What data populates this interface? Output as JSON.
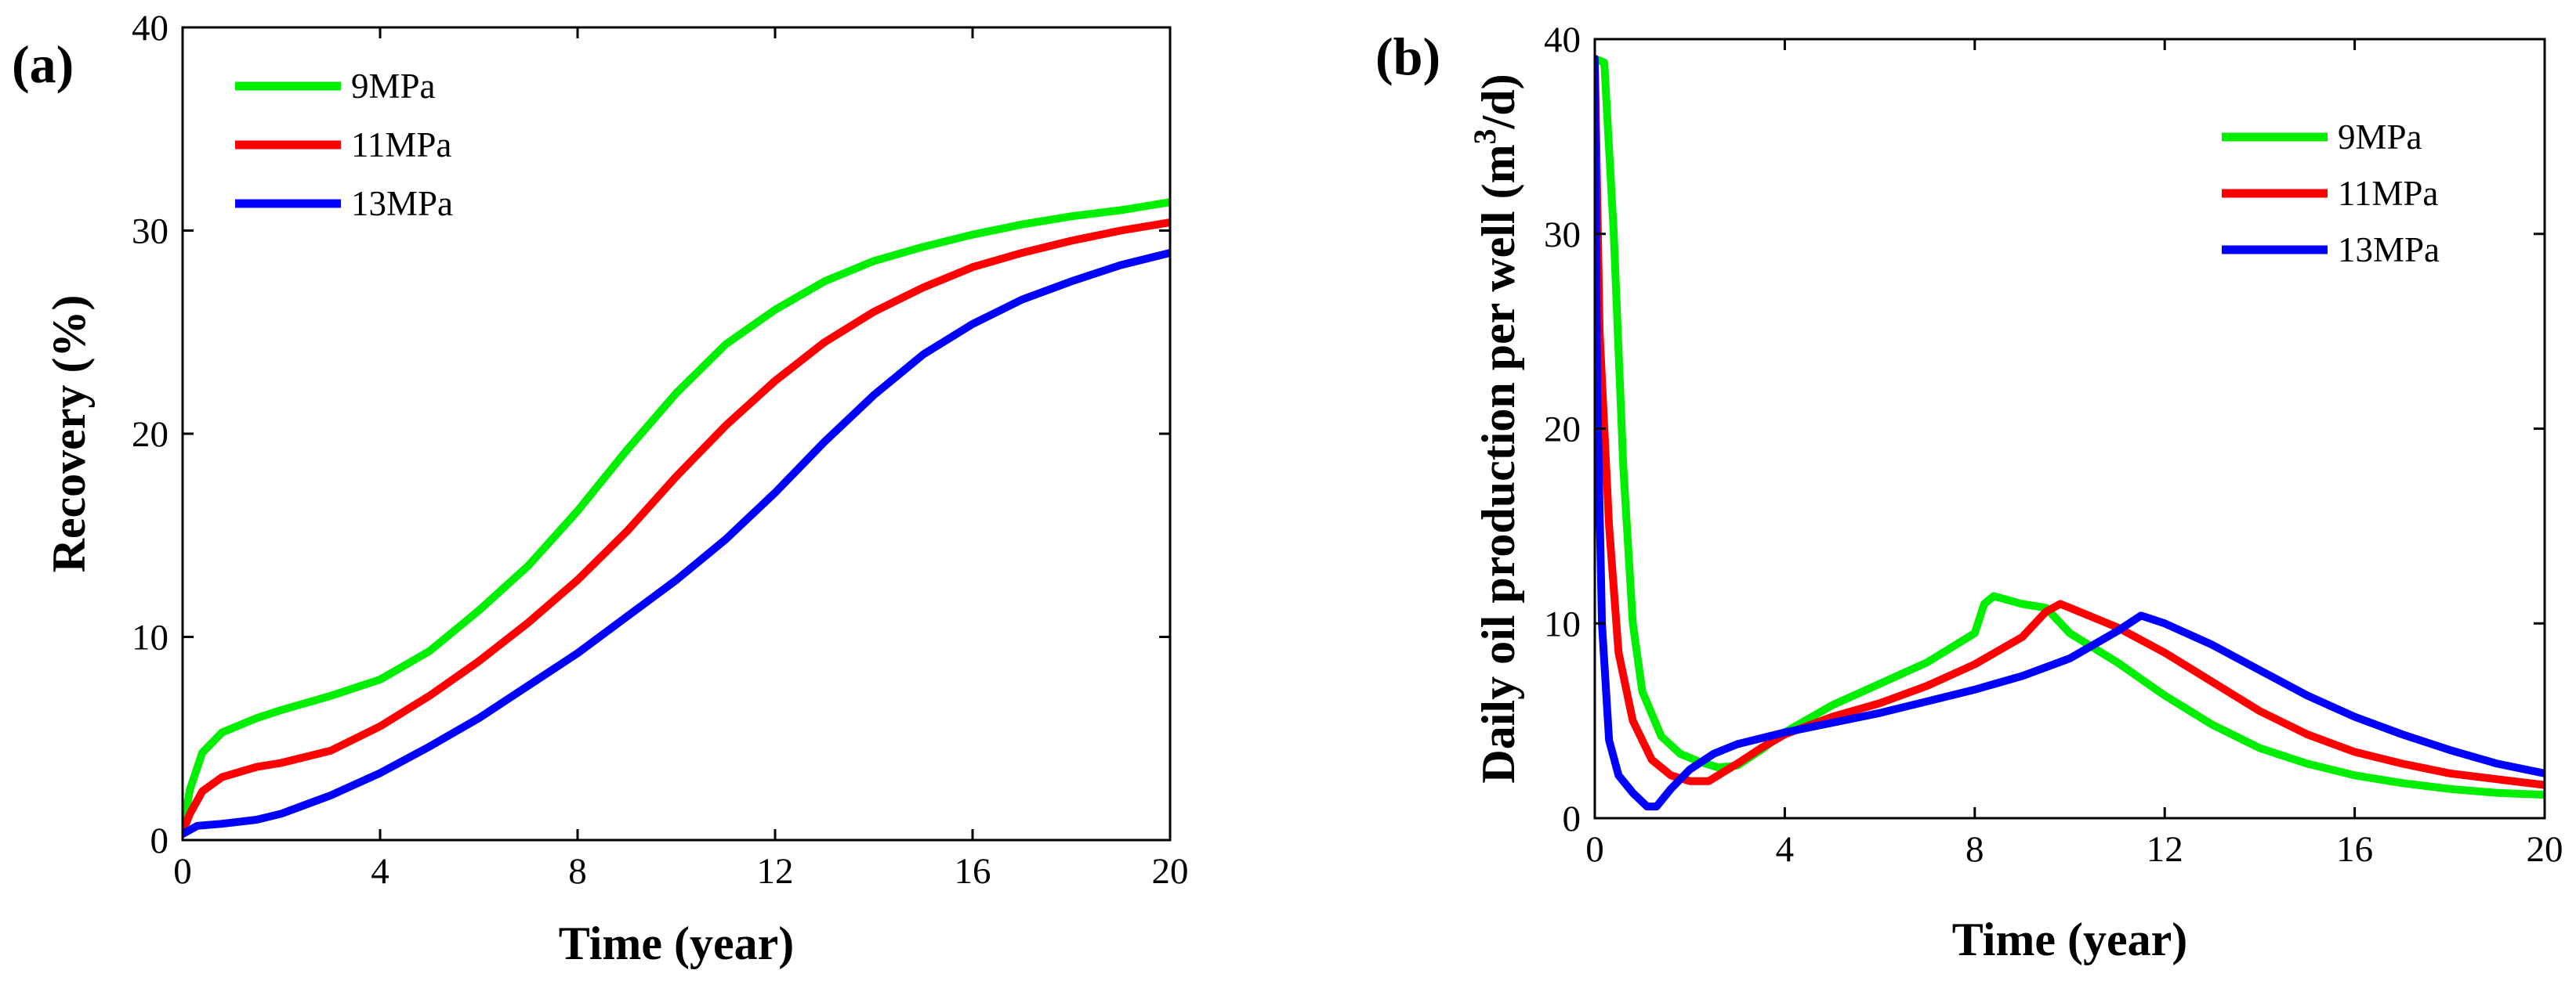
{
  "chart_data": [
    {
      "type": "line",
      "panel_label": "(a)",
      "xlabel": "Time (year)",
      "ylabel": "Recovery (%)",
      "xlim": [
        0,
        20
      ],
      "ylim": [
        0,
        40
      ],
      "xticks": [
        0,
        4,
        8,
        12,
        16,
        20
      ],
      "yticks": [
        0,
        10,
        20,
        30,
        40
      ],
      "legend_position": "top-left",
      "grid": false,
      "series": [
        {
          "name": "9MPa",
          "color": "#00ee00",
          "points": [
            [
              0,
              0.5
            ],
            [
              0.15,
              2.5
            ],
            [
              0.4,
              4.3
            ],
            [
              0.8,
              5.3
            ],
            [
              1.5,
              6.0
            ],
            [
              2,
              6.4
            ],
            [
              3,
              7.1
            ],
            [
              4,
              7.9
            ],
            [
              5,
              9.3
            ],
            [
              6,
              11.3
            ],
            [
              7,
              13.5
            ],
            [
              8,
              16.2
            ],
            [
              9,
              19.2
            ],
            [
              10,
              22.0
            ],
            [
              11,
              24.4
            ],
            [
              12,
              26.1
            ],
            [
              13,
              27.5
            ],
            [
              14,
              28.5
            ],
            [
              15,
              29.2
            ],
            [
              16,
              29.8
            ],
            [
              17,
              30.3
            ],
            [
              18,
              30.7
            ],
            [
              19,
              31.0
            ],
            [
              20,
              31.4
            ]
          ]
        },
        {
          "name": "11MPa",
          "color": "#ff0000",
          "points": [
            [
              0,
              0.4
            ],
            [
              0.15,
              1.3
            ],
            [
              0.4,
              2.4
            ],
            [
              0.8,
              3.1
            ],
            [
              1.5,
              3.6
            ],
            [
              2,
              3.8
            ],
            [
              3,
              4.4
            ],
            [
              4,
              5.6
            ],
            [
              5,
              7.1
            ],
            [
              6,
              8.8
            ],
            [
              7,
              10.7
            ],
            [
              8,
              12.8
            ],
            [
              9,
              15.2
            ],
            [
              10,
              17.9
            ],
            [
              11,
              20.4
            ],
            [
              12,
              22.6
            ],
            [
              13,
              24.5
            ],
            [
              14,
              26.0
            ],
            [
              15,
              27.2
            ],
            [
              16,
              28.2
            ],
            [
              17,
              28.9
            ],
            [
              18,
              29.5
            ],
            [
              19,
              30.0
            ],
            [
              20,
              30.4
            ]
          ]
        },
        {
          "name": "13MPa",
          "color": "#0000ff",
          "points": [
            [
              0,
              0.3
            ],
            [
              0.3,
              0.7
            ],
            [
              0.8,
              0.8
            ],
            [
              1.5,
              1.0
            ],
            [
              2,
              1.3
            ],
            [
              3,
              2.2
            ],
            [
              4,
              3.3
            ],
            [
              5,
              4.6
            ],
            [
              6,
              6.0
            ],
            [
              7,
              7.6
            ],
            [
              8,
              9.2
            ],
            [
              9,
              11.0
            ],
            [
              10,
              12.8
            ],
            [
              11,
              14.8
            ],
            [
              12,
              17.1
            ],
            [
              13,
              19.6
            ],
            [
              14,
              21.9
            ],
            [
              15,
              23.9
            ],
            [
              16,
              25.4
            ],
            [
              17,
              26.6
            ],
            [
              18,
              27.5
            ],
            [
              19,
              28.3
            ],
            [
              20,
              28.9
            ]
          ]
        }
      ]
    },
    {
      "type": "line",
      "panel_label": "(b)",
      "xlabel": "Time (year)",
      "ylabel_main": "Daily oil production per well (m",
      "ylabel_sup": "3",
      "ylabel_tail": "/d)",
      "xlim": [
        0,
        20
      ],
      "ylim": [
        0,
        40
      ],
      "xticks": [
        0,
        4,
        8,
        12,
        16,
        20
      ],
      "yticks": [
        0,
        10,
        20,
        30,
        40
      ],
      "legend_position": "top-right",
      "grid": false,
      "series": [
        {
          "name": "9MPa",
          "color": "#00ee00",
          "points": [
            [
              0,
              39
            ],
            [
              0.2,
              38.8
            ],
            [
              0.4,
              30
            ],
            [
              0.6,
              18
            ],
            [
              0.8,
              10
            ],
            [
              1.0,
              6.5
            ],
            [
              1.4,
              4.2
            ],
            [
              1.8,
              3.3
            ],
            [
              2.2,
              2.9
            ],
            [
              2.6,
              2.6
            ],
            [
              3,
              2.7
            ],
            [
              3.5,
              3.5
            ],
            [
              4,
              4.4
            ],
            [
              5,
              5.8
            ],
            [
              6,
              6.9
            ],
            [
              7,
              8.0
            ],
            [
              8,
              9.5
            ],
            [
              8.2,
              11.0
            ],
            [
              8.4,
              11.4
            ],
            [
              9,
              11.0
            ],
            [
              9.5,
              10.8
            ],
            [
              10,
              9.5
            ],
            [
              11,
              8.0
            ],
            [
              12,
              6.3
            ],
            [
              13,
              4.8
            ],
            [
              14,
              3.6
            ],
            [
              15,
              2.8
            ],
            [
              16,
              2.2
            ],
            [
              17,
              1.8
            ],
            [
              18,
              1.5
            ],
            [
              19,
              1.3
            ],
            [
              20,
              1.2
            ]
          ]
        },
        {
          "name": "11MPa",
          "color": "#ff0000",
          "points": [
            [
              0,
              39
            ],
            [
              0.1,
              25
            ],
            [
              0.3,
              15
            ],
            [
              0.5,
              8.5
            ],
            [
              0.8,
              5
            ],
            [
              1.2,
              3
            ],
            [
              1.6,
              2.2
            ],
            [
              2,
              1.9
            ],
            [
              2.4,
              1.9
            ],
            [
              3,
              2.8
            ],
            [
              3.5,
              3.6
            ],
            [
              4,
              4.3
            ],
            [
              5,
              5.2
            ],
            [
              6,
              5.9
            ],
            [
              7,
              6.8
            ],
            [
              8,
              7.9
            ],
            [
              9,
              9.3
            ],
            [
              9.5,
              10.6
            ],
            [
              9.8,
              11.0
            ],
            [
              10,
              10.8
            ],
            [
              11,
              9.8
            ],
            [
              12,
              8.5
            ],
            [
              13,
              7.0
            ],
            [
              14,
              5.5
            ],
            [
              15,
              4.3
            ],
            [
              16,
              3.4
            ],
            [
              17,
              2.8
            ],
            [
              18,
              2.3
            ],
            [
              19,
              2.0
            ],
            [
              20,
              1.7
            ]
          ]
        },
        {
          "name": "13MPa",
          "color": "#0000ff",
          "points": [
            [
              0,
              39
            ],
            [
              0.05,
              22
            ],
            [
              0.15,
              10
            ],
            [
              0.3,
              4
            ],
            [
              0.5,
              2.2
            ],
            [
              0.8,
              1.3
            ],
            [
              1.1,
              0.6
            ],
            [
              1.3,
              0.6
            ],
            [
              1.6,
              1.5
            ],
            [
              2,
              2.5
            ],
            [
              2.5,
              3.3
            ],
            [
              3,
              3.8
            ],
            [
              4,
              4.4
            ],
            [
              5,
              4.9
            ],
            [
              6,
              5.4
            ],
            [
              7,
              6.0
            ],
            [
              8,
              6.6
            ],
            [
              9,
              7.3
            ],
            [
              10,
              8.2
            ],
            [
              11,
              9.6
            ],
            [
              11.5,
              10.4
            ],
            [
              12,
              10.0
            ],
            [
              13,
              8.9
            ],
            [
              14,
              7.6
            ],
            [
              15,
              6.3
            ],
            [
              16,
              5.2
            ],
            [
              17,
              4.3
            ],
            [
              18,
              3.5
            ],
            [
              19,
              2.8
            ],
            [
              20,
              2.3
            ]
          ]
        }
      ]
    }
  ]
}
